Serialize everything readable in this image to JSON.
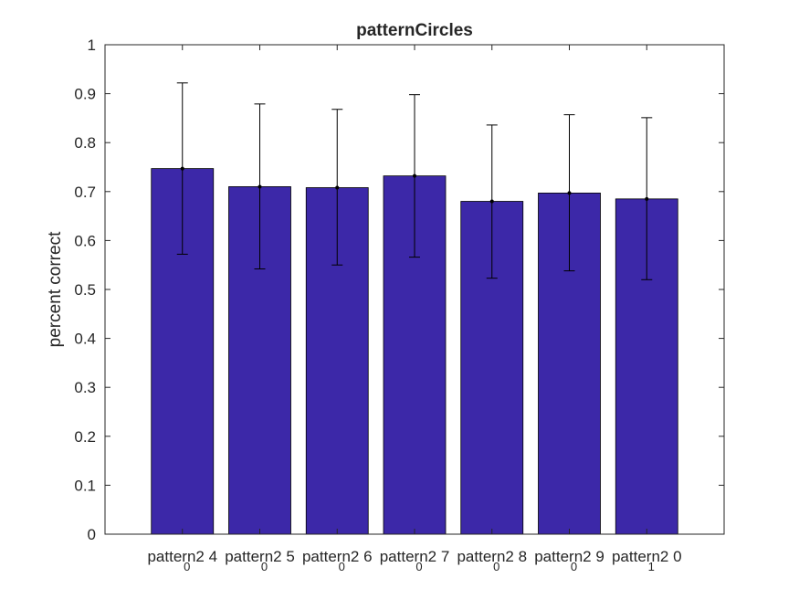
{
  "chart_data": {
    "type": "bar",
    "title": "patternCircles",
    "xlabel": "",
    "ylabel": "percent correct",
    "ylim": [
      0,
      1
    ],
    "yticks": [
      "0",
      "0.1",
      "0.2",
      "0.3",
      "0.4",
      "0.5",
      "0.6",
      "0.7",
      "0.8",
      "0.9",
      "1"
    ],
    "categories": [
      {
        "main": "pattern2_4",
        "sub": "0"
      },
      {
        "main": "pattern2_5",
        "sub": "0"
      },
      {
        "main": "pattern2_6",
        "sub": "0"
      },
      {
        "main": "pattern2_7",
        "sub": "0"
      },
      {
        "main": "pattern2_8",
        "sub": "0"
      },
      {
        "main": "pattern2_9",
        "sub": "0"
      },
      {
        "main": "pattern2_0",
        "sub": "1"
      }
    ],
    "values": [
      0.747,
      0.71,
      0.708,
      0.732,
      0.68,
      0.697,
      0.685
    ],
    "error_low": [
      0.572,
      0.542,
      0.55,
      0.566,
      0.523,
      0.538,
      0.52
    ],
    "error_high": [
      0.922,
      0.879,
      0.868,
      0.898,
      0.836,
      0.857,
      0.851
    ],
    "bar_color": "#3c28a8",
    "grid": false,
    "legend": "none"
  }
}
